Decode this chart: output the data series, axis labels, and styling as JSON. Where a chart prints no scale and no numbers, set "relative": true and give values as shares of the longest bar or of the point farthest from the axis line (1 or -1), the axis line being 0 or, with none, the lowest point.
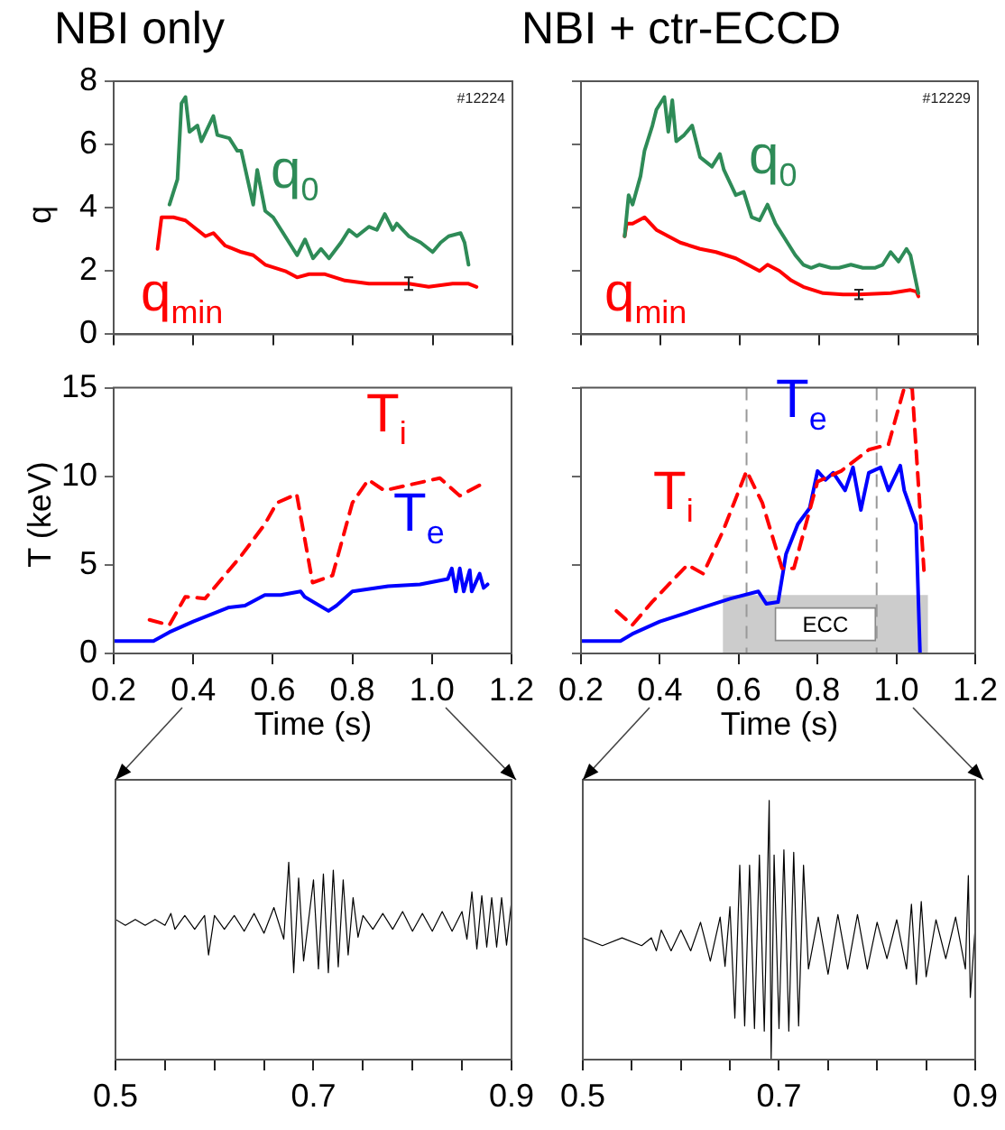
{
  "chart_data": [
    {
      "type": "line",
      "title": "NBI only",
      "ylabel": "q",
      "annotations": [
        "#12224"
      ],
      "xlim": [
        0.2,
        1.2
      ],
      "xticks": [
        0.2,
        0.4,
        0.6,
        0.8,
        1,
        1.2
      ],
      "ylim": [
        0,
        8
      ],
      "yticks": [
        0,
        2,
        4,
        6,
        8
      ],
      "tick_labels": "y",
      "marker": "none",
      "series": [
        {
          "name": "q$_{0}$",
          "color": "#2e8b57",
          "x": [
            0.34,
            0.355,
            0.36,
            0.37,
            0.38,
            0.39,
            0.41,
            0.42,
            0.45,
            0.46,
            0.49,
            0.51,
            0.52,
            0.55,
            0.56,
            0.58,
            0.6,
            0.62,
            0.65,
            0.66,
            0.68,
            0.7,
            0.72,
            0.74,
            0.77,
            0.79,
            0.81,
            0.84,
            0.86,
            0.88,
            0.9,
            0.91,
            0.94,
            0.97,
            1.0,
            1.02,
            1.04,
            1.07,
            1.08,
            1.09
          ],
          "values": [
            4.1,
            4.7,
            4.9,
            7.3,
            7.5,
            6.4,
            6.6,
            6.1,
            6.9,
            6.3,
            6.2,
            5.8,
            5.8,
            4.1,
            5.2,
            3.9,
            3.7,
            3.3,
            2.7,
            2.5,
            3.0,
            2.4,
            2.7,
            2.4,
            2.9,
            3.3,
            3.1,
            3.4,
            3.3,
            3.8,
            3.3,
            3.5,
            3.1,
            2.9,
            2.6,
            2.9,
            3.1,
            3.2,
            2.9,
            2.2
          ]
        },
        {
          "name": "q$_{min}$",
          "color": "#ff0000",
          "x": [
            0.31,
            0.32,
            0.35,
            0.38,
            0.41,
            0.43,
            0.45,
            0.48,
            0.52,
            0.55,
            0.58,
            0.63,
            0.66,
            0.69,
            0.73,
            0.78,
            0.84,
            0.94,
            0.99,
            1.05,
            1.09,
            1.11
          ],
          "values": [
            2.7,
            3.7,
            3.7,
            3.6,
            3.3,
            3.1,
            3.2,
            2.8,
            2.6,
            2.5,
            2.2,
            2.0,
            1.8,
            1.9,
            1.9,
            1.7,
            1.6,
            1.6,
            1.5,
            1.6,
            1.6,
            1.5
          ],
          "errors": [
            null,
            null,
            null,
            null,
            null,
            null,
            null,
            null,
            null,
            null,
            null,
            null,
            null,
            null,
            null,
            null,
            null,
            0.2,
            null,
            null,
            null,
            null
          ]
        }
      ]
    },
    {
      "type": "line",
      "title": "NBI + ctr-ECCD",
      "annotations": [
        "#12229"
      ],
      "xlim": [
        0.2,
        1.2
      ],
      "xticks": [
        0.2,
        0.4,
        0.6,
        0.8,
        1,
        1.2
      ],
      "ylim": [
        0,
        8
      ],
      "yticks": [
        0,
        2,
        4,
        6,
        8
      ],
      "tick_labels": false,
      "marker": "none",
      "series": [
        {
          "name": "q$_{0}$",
          "color": "#2e8b57",
          "x": [
            0.31,
            0.32,
            0.33,
            0.35,
            0.36,
            0.38,
            0.39,
            0.41,
            0.42,
            0.43,
            0.44,
            0.46,
            0.48,
            0.5,
            0.53,
            0.55,
            0.56,
            0.59,
            0.61,
            0.63,
            0.65,
            0.67,
            0.69,
            0.72,
            0.74,
            0.76,
            0.78,
            0.8,
            0.83,
            0.85,
            0.88,
            0.91,
            0.94,
            0.96,
            0.98,
            1.0,
            1.02,
            1.03,
            1.05
          ],
          "values": [
            3.1,
            4.4,
            4.1,
            5.0,
            5.8,
            6.6,
            7.1,
            7.5,
            6.4,
            7.4,
            6.1,
            6.3,
            6.6,
            5.6,
            5.3,
            5.7,
            5.2,
            4.4,
            4.5,
            3.7,
            3.6,
            4.1,
            3.5,
            2.9,
            2.5,
            2.2,
            2.1,
            2.2,
            2.1,
            2.1,
            2.2,
            2.1,
            2.1,
            2.2,
            2.6,
            2.3,
            2.7,
            2.5,
            1.3
          ]
        },
        {
          "name": "q$_{min}$",
          "color": "#ff0000",
          "x": [
            0.31,
            0.315,
            0.33,
            0.36,
            0.39,
            0.42,
            0.45,
            0.5,
            0.54,
            0.59,
            0.62,
            0.65,
            0.67,
            0.7,
            0.73,
            0.76,
            0.81,
            0.86,
            0.9,
            0.98,
            1.03,
            1.045,
            1.05
          ],
          "values": [
            3.1,
            3.5,
            3.5,
            3.7,
            3.3,
            3.1,
            2.9,
            2.7,
            2.6,
            2.4,
            2.2,
            2.0,
            2.2,
            2.0,
            1.7,
            1.5,
            1.3,
            1.26,
            1.26,
            1.3,
            1.4,
            1.35,
            1.2
          ],
          "errors": [
            null,
            null,
            null,
            null,
            null,
            null,
            null,
            null,
            null,
            null,
            null,
            null,
            null,
            null,
            null,
            null,
            null,
            null,
            0.15,
            null,
            null,
            null,
            null
          ]
        }
      ]
    },
    {
      "type": "line",
      "xlabel": "Time (s)",
      "ylabel": "T (keV)",
      "xlim": [
        0.2,
        1.2
      ],
      "xticks": [
        0.2,
        0.4,
        0.6,
        0.8,
        {
          "value": 1,
          "label": "1.0"
        },
        1.2
      ],
      "ylim": [
        0,
        15
      ],
      "yticks": [
        0,
        5,
        10,
        15
      ],
      "marker": "none",
      "series": [
        {
          "name": "T$_{i}$",
          "color": "#ff0000",
          "line_style": "dashed",
          "x": [
            0.29,
            0.34,
            0.38,
            0.43,
            0.52,
            0.58,
            0.61,
            0.66,
            0.7,
            0.75,
            0.8,
            0.84,
            0.88,
            0.94,
            1.02,
            1.07,
            1.12
          ],
          "values": [
            1.9,
            1.6,
            3.2,
            3.1,
            5.5,
            7.3,
            8.5,
            9.0,
            4.0,
            4.4,
            8.5,
            9.8,
            9.2,
            9.5,
            9.9,
            8.9,
            9.5
          ]
        },
        {
          "name": "T$_{e}$",
          "color": "#0000ff",
          "x": [
            0.2,
            0.3,
            0.34,
            0.4,
            0.49,
            0.53,
            0.58,
            0.62,
            0.67,
            0.68,
            0.74,
            0.76,
            0.8,
            0.89,
            0.97,
            1.04,
            1.05,
            1.06,
            1.07,
            1.08,
            1.095,
            1.1,
            1.12,
            1.13,
            1.14
          ],
          "values": [
            0.7,
            0.7,
            1.2,
            1.8,
            2.6,
            2.7,
            3.3,
            3.3,
            3.5,
            3.2,
            2.4,
            2.7,
            3.5,
            3.8,
            3.9,
            4.2,
            4.8,
            3.5,
            4.8,
            3.5,
            4.7,
            3.5,
            4.5,
            3.7,
            3.9
          ]
        }
      ]
    },
    {
      "type": "line",
      "xlabel": "Time (s)",
      "xlim": [
        0.2,
        1.2
      ],
      "xticks": [
        0.2,
        0.4,
        0.6,
        0.8,
        {
          "value": 1,
          "label": "1.0"
        },
        1.2
      ],
      "ylim": [
        0,
        15
      ],
      "yticks": [
        0,
        5,
        10,
        15
      ],
      "tick_labels": "x",
      "marker": "none",
      "ref_lines": [
        {
          "axis": "x",
          "value": 0.62,
          "color": "#999999",
          "line_style": "dashed"
        },
        {
          "axis": "x",
          "value": 0.95,
          "color": "#999999",
          "line_style": "dashed"
        }
      ],
      "bands": [
        {
          "axis": "x",
          "from": 0.56,
          "to": 1.08,
          "label": "ECC",
          "color": "#cccccc"
        }
      ],
      "series": [
        {
          "name": "T$_{i}$",
          "color": "#ff0000",
          "line_style": "dashed",
          "x": [
            0.29,
            0.33,
            0.38,
            0.47,
            0.51,
            0.56,
            0.62,
            0.66,
            0.71,
            0.74,
            0.8,
            0.86,
            0.93,
            0.98,
            1.02,
            1.04,
            1.07
          ],
          "values": [
            2.4,
            1.6,
            2.9,
            5.0,
            4.5,
            6.9,
            10.3,
            8.5,
            4.8,
            4.8,
            9.7,
            10.3,
            11.5,
            11.8,
            15,
            15,
            4.7
          ]
        },
        {
          "name": "T$_{e}$",
          "color": "#0000ff",
          "x": [
            0.2,
            0.3,
            0.33,
            0.4,
            0.51,
            0.58,
            0.65,
            0.67,
            0.7,
            0.72,
            0.75,
            0.78,
            0.8,
            0.82,
            0.84,
            0.87,
            0.89,
            0.91,
            0.93,
            0.96,
            0.98,
            1.01,
            1.02,
            1.05,
            1.06
          ],
          "values": [
            0.7,
            0.7,
            1.1,
            1.8,
            2.6,
            3.1,
            3.5,
            2.8,
            2.9,
            5.6,
            7.3,
            8.2,
            10.3,
            9.8,
            10.2,
            9.2,
            10.5,
            8.1,
            10.2,
            10.5,
            9.2,
            10.6,
            9.2,
            7.3,
            0
          ]
        }
      ]
    },
    {
      "type": "line",
      "relative": true,
      "xlim": [
        0.5,
        0.9
      ],
      "xticks": [
        0.5,
        {
          "value": 0.55,
          "label": null
        },
        {
          "value": 0.6,
          "label": null
        },
        {
          "value": 0.65,
          "label": null
        },
        0.7,
        {
          "value": 0.75,
          "label": null
        },
        {
          "value": 0.8,
          "label": null
        },
        {
          "value": 0.85,
          "label": null
        },
        0.9
      ],
      "tick_labels": "x",
      "marker": "none",
      "series": [
        {
          "color": "#000000",
          "x": [
            0.5,
            0.51,
            0.52,
            0.53,
            0.54,
            0.55,
            0.556,
            0.56,
            0.57,
            0.58,
            0.59,
            0.594,
            0.6,
            0.61,
            0.62,
            0.63,
            0.64,
            0.65,
            0.66,
            0.67,
            0.675,
            0.68,
            0.685,
            0.69,
            0.7,
            0.705,
            0.71,
            0.715,
            0.72,
            0.725,
            0.73,
            0.735,
            0.74,
            0.745,
            0.75,
            0.76,
            0.77,
            0.78,
            0.79,
            0.8,
            0.81,
            0.82,
            0.83,
            0.84,
            0.85,
            0.855,
            0.86,
            0.865,
            0.87,
            0.875,
            0.88,
            0.885,
            0.89,
            0.895,
            0.9
          ],
          "values": [
            0.71,
            0.68,
            0.71,
            0.68,
            0.71,
            0.68,
            0.74,
            0.66,
            0.73,
            0.66,
            0.73,
            0.53,
            0.73,
            0.66,
            0.73,
            0.65,
            0.74,
            0.64,
            0.77,
            0.61,
            1,
            0.44,
            0.92,
            0.5,
            0.91,
            0.46,
            0.94,
            0.44,
            0.96,
            0.47,
            0.91,
            0.53,
            0.82,
            0.62,
            0.73,
            0.66,
            0.74,
            0.66,
            0.75,
            0.65,
            0.74,
            0.65,
            0.75,
            0.65,
            0.75,
            0.61,
            0.85,
            0.56,
            0.83,
            0.57,
            0.82,
            0.57,
            0.82,
            0.58,
            0.8
          ]
        }
      ]
    },
    {
      "type": "line",
      "relative": true,
      "xlim": [
        0.5,
        0.9
      ],
      "xticks": [
        0.5,
        {
          "value": 0.55,
          "label": null
        },
        {
          "value": 0.6,
          "label": null
        },
        {
          "value": 0.65,
          "label": null
        },
        0.7,
        {
          "value": 0.75,
          "label": null
        },
        {
          "value": 0.8,
          "label": null
        },
        {
          "value": 0.85,
          "label": null
        },
        0.9
      ],
      "tick_labels": "x",
      "marker": "none",
      "series": [
        {
          "color": "#000000",
          "x": [
            0.5,
            0.52,
            0.54,
            0.56,
            0.57,
            0.575,
            0.58,
            0.59,
            0.6,
            0.61,
            0.62,
            0.63,
            0.64,
            0.645,
            0.65,
            0.655,
            0.66,
            0.665,
            0.67,
            0.675,
            0.68,
            0.685,
            0.69,
            0.692,
            0.695,
            0.7,
            0.705,
            0.71,
            0.715,
            0.72,
            0.725,
            0.73,
            0.74,
            0.75,
            0.76,
            0.77,
            0.78,
            0.79,
            0.8,
            0.81,
            0.82,
            0.83,
            0.835,
            0.84,
            0.845,
            0.85,
            0.86,
            0.87,
            0.88,
            0.89,
            0.893,
            0.895,
            0.9
          ],
          "values": [
            0.47,
            0.44,
            0.47,
            0.44,
            0.47,
            0.42,
            0.5,
            0.42,
            0.5,
            0.42,
            0.53,
            0.38,
            0.55,
            0.36,
            0.59,
            0.16,
            0.75,
            0.13,
            0.75,
            0.12,
            0.79,
            0.11,
            1,
            0,
            0.79,
            0.12,
            0.81,
            0.11,
            0.8,
            0.13,
            0.75,
            0.35,
            0.55,
            0.33,
            0.56,
            0.35,
            0.56,
            0.35,
            0.53,
            0.39,
            0.54,
            0.35,
            0.6,
            0.29,
            0.61,
            0.32,
            0.54,
            0.39,
            0.55,
            0.35,
            0.71,
            0.24,
            0.51
          ]
        }
      ]
    }
  ]
}
